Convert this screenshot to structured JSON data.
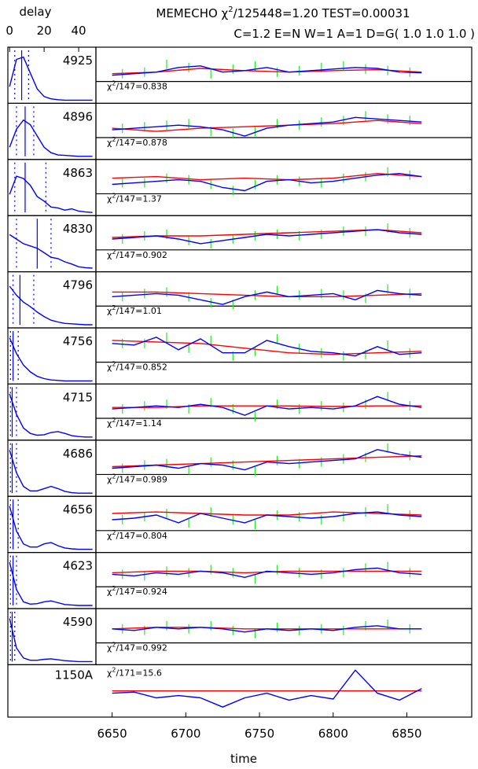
{
  "chart_data": {
    "type": "multi-line",
    "title": "MEMECHO χ",
    "title_exp": "2",
    "title_rest": "/125448=1.20 TEST=0.00031",
    "subtitle": "C=1.2 E=N W=1 A=1 D=G( 1.0 1.0 1.0 )",
    "xlabel": "time",
    "delay_label": "delay",
    "delay_xlim": [
      -1,
      50
    ],
    "delay_xticks": [
      0,
      20,
      40
    ],
    "delay_ylim": [
      0,
      1.1
    ],
    "delay_x": [
      0,
      4,
      8,
      12,
      16,
      20,
      24,
      28,
      32,
      36,
      40,
      44,
      48
    ],
    "xlim": [
      6639,
      6894
    ],
    "xticks": [
      6650,
      6700,
      6750,
      6800,
      6850
    ],
    "ylim": [
      -0.6,
      1
    ],
    "t": [
      6650,
      6665,
      6680,
      6695,
      6710,
      6725,
      6740,
      6755,
      6770,
      6785,
      6800,
      6815,
      6830,
      6845,
      6860
    ],
    "t_red": [
      6650,
      6680,
      6710,
      6740,
      6770,
      6800,
      6830,
      6860
    ],
    "t_data": [
      6657,
      6672,
      6687,
      6702,
      6717,
      6732,
      6747,
      6762,
      6777,
      6792,
      6807,
      6822,
      6837,
      6852
    ],
    "colors": {
      "model": "#0000ff",
      "mean": "#ff0000",
      "data": "#22ee22"
    },
    "panels": [
      {
        "label": "4925",
        "chi": "χ",
        "chi_exp": "2",
        "chi_text": "/147=0.838",
        "transfer": [
          0.3,
          0.9,
          0.95,
          0.6,
          0.25,
          0.08,
          0.03,
          0.01,
          0,
          0,
          0,
          0,
          0
        ],
        "delay_marks": [
          3,
          7,
          11
        ],
        "model": [
          0.2,
          0.25,
          0.3,
          0.45,
          0.5,
          0.3,
          0.35,
          0.45,
          0.3,
          0.35,
          0.4,
          0.45,
          0.42,
          0.3,
          0.28
        ],
        "mean": [
          0.25,
          0.3,
          0.42,
          0.35,
          0.3,
          0.35,
          0.38,
          0.3
        ],
        "data": [
          0.25,
          0.3,
          0.55,
          0.45,
          0.25,
          0.4,
          0.5,
          0.3,
          0.35,
          0.45,
          0.5,
          0.4,
          0.35,
          0.3
        ]
      },
      {
        "label": "4896",
        "chi": "χ",
        "chi_exp": "2",
        "chi_text": "/147=0.878",
        "transfer": [
          0.2,
          0.6,
          0.8,
          0.7,
          0.45,
          0.2,
          0.08,
          0.03,
          0.02,
          0.01,
          0,
          0,
          0
        ],
        "delay_marks": [
          4,
          9,
          14
        ],
        "model": [
          0.25,
          0.3,
          0.35,
          0.4,
          0.35,
          0.25,
          0.05,
          0.3,
          0.4,
          0.45,
          0.5,
          0.65,
          0.6,
          0.55,
          0.5
        ],
        "mean": [
          0.3,
          0.2,
          0.3,
          0.35,
          0.4,
          0.45,
          0.55,
          0.45
        ],
        "data": [
          0.3,
          0.35,
          0.4,
          0.45,
          0.2,
          0.15,
          0.2,
          0.45,
          0.4,
          0.5,
          0.55,
          0.7,
          0.6,
          0.55
        ]
      },
      {
        "label": "4863",
        "chi": "χ",
        "chi_exp": "2",
        "chi_text": "/147=1.37",
        "transfer": [
          0.4,
          0.8,
          0.75,
          0.6,
          0.35,
          0.25,
          0.12,
          0.1,
          0.05,
          0.08,
          0.03,
          0.01,
          0
        ],
        "delay_marks": [
          3,
          9,
          21
        ],
        "model": [
          0.3,
          0.35,
          0.4,
          0.45,
          0.4,
          0.2,
          0.1,
          0.4,
          0.45,
          0.35,
          0.4,
          0.5,
          0.6,
          0.65,
          0.55
        ],
        "mean": [
          0.5,
          0.55,
          0.45,
          0.5,
          0.45,
          0.5,
          0.65,
          0.55
        ],
        "data": [
          0.35,
          0.35,
          0.5,
          0.45,
          0.3,
          0.1,
          0.3,
          0.45,
          0.4,
          0.35,
          0.5,
          0.55,
          0.7,
          0.6
        ]
      },
      {
        "label": "4830",
        "chi": "χ",
        "chi_exp": "2",
        "chi_text": "/147=0.902",
        "transfer": [
          0.75,
          0.65,
          0.55,
          0.5,
          0.45,
          0.35,
          0.25,
          0.22,
          0.15,
          0.1,
          0.04,
          0.02,
          0.01
        ],
        "delay_marks": [
          4,
          16,
          24
        ],
        "model": [
          0.35,
          0.4,
          0.45,
          0.35,
          0.2,
          0.3,
          0.4,
          0.5,
          0.45,
          0.5,
          0.55,
          0.6,
          0.65,
          0.55,
          0.5
        ],
        "mean": [
          0.4,
          0.45,
          0.45,
          0.5,
          0.55,
          0.6,
          0.65,
          0.55
        ],
        "data": [
          0.35,
          0.45,
          0.5,
          0.3,
          0.2,
          0.35,
          0.45,
          0.5,
          0.45,
          0.5,
          0.6,
          0.6,
          0.7,
          0.55
        ]
      },
      {
        "label": "4796",
        "chi": "χ",
        "chi_exp": "2",
        "chi_text": "/147=1.01",
        "transfer": [
          0.85,
          0.65,
          0.5,
          0.4,
          0.28,
          0.18,
          0.1,
          0.06,
          0.03,
          0.02,
          0.01,
          0,
          0
        ],
        "delay_marks": [
          2,
          6,
          14
        ],
        "model": [
          0.3,
          0.35,
          0.4,
          0.35,
          0.2,
          0.05,
          0.3,
          0.45,
          0.3,
          0.35,
          0.4,
          0.2,
          0.5,
          0.4,
          0.35
        ],
        "mean": [
          0.45,
          0.45,
          0.4,
          0.35,
          0.3,
          0.3,
          0.35,
          0.4
        ],
        "data": [
          0.3,
          0.4,
          0.45,
          0.3,
          0.1,
          0.05,
          0.35,
          0.5,
          0.35,
          0.4,
          0.35,
          0.25,
          0.55,
          0.4
        ]
      },
      {
        "label": "4756",
        "chi": "χ",
        "chi_exp": "2",
        "chi_text": "/147=0.852",
        "transfer": [
          0.95,
          0.6,
          0.35,
          0.2,
          0.1,
          0.05,
          0.02,
          0.01,
          0,
          0,
          0,
          0,
          0
        ],
        "delay_marks": [
          0.5,
          2,
          5
        ],
        "model": [
          0.6,
          0.55,
          0.8,
          0.4,
          0.75,
          0.3,
          0.3,
          0.7,
          0.5,
          0.35,
          0.3,
          0.2,
          0.5,
          0.25,
          0.3
        ],
        "mean": [
          0.7,
          0.65,
          0.6,
          0.45,
          0.3,
          0.25,
          0.3,
          0.35
        ],
        "data": [
          0.6,
          0.6,
          0.8,
          0.45,
          0.7,
          0.2,
          0.35,
          0.75,
          0.45,
          0.3,
          0.2,
          0.25,
          0.55,
          0.3
        ]
      },
      {
        "label": "4715",
        "chi": "χ",
        "chi_exp": "2",
        "chi_text": "/147=1.14",
        "transfer": [
          0.95,
          0.5,
          0.2,
          0.08,
          0.04,
          0.05,
          0.1,
          0.12,
          0.08,
          0.03,
          0.01,
          0,
          0
        ],
        "delay_marks": [
          0.5,
          1.5,
          4
        ],
        "model": [
          0.3,
          0.35,
          0.4,
          0.35,
          0.45,
          0.35,
          0.1,
          0.4,
          0.3,
          0.35,
          0.3,
          0.4,
          0.7,
          0.45,
          0.35
        ],
        "mean": [
          0.35,
          0.35,
          0.4,
          0.4,
          0.4,
          0.38,
          0.4,
          0.4
        ],
        "data": [
          0.3,
          0.4,
          0.45,
          0.3,
          0.5,
          0.3,
          0.05,
          0.45,
          0.3,
          0.4,
          0.35,
          0.45,
          0.7,
          0.4
        ]
      },
      {
        "label": "4686",
        "chi": "χ",
        "chi_exp": "2",
        "chi_text": "/147=0.989",
        "transfer": [
          0.95,
          0.45,
          0.15,
          0.05,
          0.05,
          0.1,
          0.15,
          0.1,
          0.04,
          0.01,
          0,
          0,
          0
        ],
        "delay_marks": [
          0.5,
          1.5,
          4
        ],
        "model": [
          0.2,
          0.25,
          0.3,
          0.2,
          0.35,
          0.3,
          0.15,
          0.4,
          0.35,
          0.4,
          0.45,
          0.5,
          0.8,
          0.65,
          0.55
        ],
        "mean": [
          0.25,
          0.3,
          0.35,
          0.4,
          0.45,
          0.5,
          0.55,
          0.6
        ],
        "data": [
          0.2,
          0.3,
          0.35,
          0.15,
          0.4,
          0.3,
          0.1,
          0.45,
          0.35,
          0.4,
          0.5,
          0.55,
          0.85,
          0.6
        ]
      },
      {
        "label": "4656",
        "chi": "χ",
        "chi_exp": "2",
        "chi_text": "/147=0.804",
        "transfer": [
          0.95,
          0.4,
          0.12,
          0.05,
          0.05,
          0.12,
          0.15,
          0.08,
          0.03,
          0.01,
          0,
          0,
          0
        ],
        "delay_marks": [
          0.5,
          2,
          5
        ],
        "model": [
          0.35,
          0.4,
          0.5,
          0.25,
          0.55,
          0.4,
          0.25,
          0.5,
          0.45,
          0.4,
          0.45,
          0.55,
          0.6,
          0.5,
          0.45
        ],
        "mean": [
          0.55,
          0.6,
          0.55,
          0.5,
          0.5,
          0.6,
          0.55,
          0.5
        ],
        "data": [
          0.35,
          0.45,
          0.55,
          0.25,
          0.6,
          0.35,
          0.2,
          0.5,
          0.45,
          0.35,
          0.45,
          0.6,
          0.7,
          0.5
        ]
      },
      {
        "label": "4623",
        "chi": "χ",
        "chi_exp": "2",
        "chi_text": "/147=0.924",
        "transfer": [
          0.95,
          0.35,
          0.08,
          0.03,
          0.04,
          0.08,
          0.1,
          0.06,
          0.02,
          0.01,
          0,
          0,
          0
        ],
        "delay_marks": [
          0.5,
          2,
          4
        ],
        "model": [
          0.4,
          0.35,
          0.45,
          0.4,
          0.5,
          0.45,
          0.3,
          0.5,
          0.45,
          0.4,
          0.45,
          0.55,
          0.6,
          0.45,
          0.4
        ],
        "mean": [
          0.45,
          0.5,
          0.5,
          0.45,
          0.5,
          0.5,
          0.5,
          0.5
        ],
        "data": [
          0.4,
          0.35,
          0.5,
          0.45,
          0.55,
          0.45,
          0.25,
          0.55,
          0.45,
          0.4,
          0.45,
          0.6,
          0.65,
          0.45
        ]
      },
      {
        "label": "4590",
        "chi": "χ",
        "chi_exp": "2",
        "chi_text": "/147=0.992",
        "transfer": [
          0.95,
          0.3,
          0.08,
          0.03,
          0.03,
          0.05,
          0.06,
          0.04,
          0.02,
          0.01,
          0,
          0,
          0
        ],
        "delay_marks": [
          0.5,
          1.5,
          3
        ],
        "model": [
          0.45,
          0.4,
          0.5,
          0.45,
          0.5,
          0.45,
          0.35,
          0.45,
          0.4,
          0.45,
          0.4,
          0.5,
          0.55,
          0.45,
          0.45
        ],
        "mean": [
          0.45,
          0.5,
          0.5,
          0.45,
          0.45,
          0.45,
          0.45,
          0.45
        ],
        "data": [
          0.45,
          0.4,
          0.55,
          0.45,
          0.55,
          0.4,
          0.3,
          0.5,
          0.4,
          0.45,
          0.4,
          0.55,
          0.6,
          0.45
        ]
      }
    ],
    "continuum": {
      "label": "1150A",
      "chi": "χ",
      "chi_exp": "2",
      "chi_text": "/171=15.6",
      "ylim": [
        -1,
        1
      ],
      "model": [
        -0.1,
        -0.05,
        -0.3,
        -0.2,
        -0.3,
        -0.7,
        -0.3,
        -0.1,
        -0.4,
        -0.2,
        -0.35,
        0.9,
        -0.1,
        -0.4,
        0.1
      ],
      "mean": [
        0,
        0,
        0,
        0,
        0,
        0,
        0,
        0
      ]
    }
  }
}
